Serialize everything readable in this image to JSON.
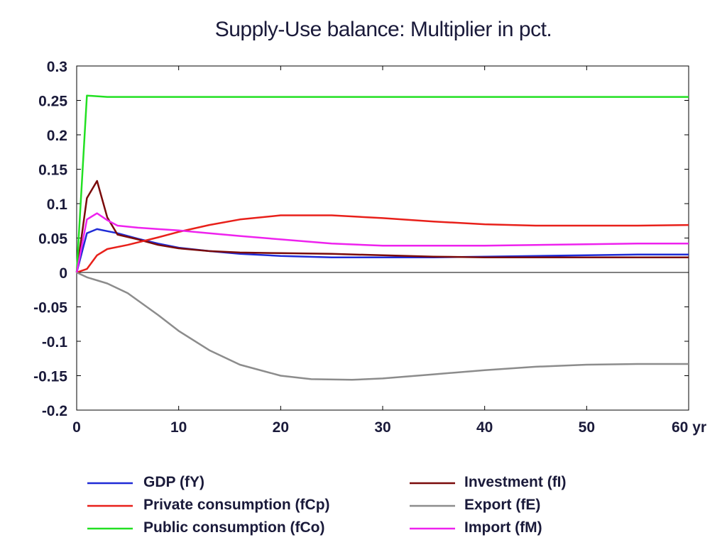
{
  "chart_data": {
    "type": "line",
    "title": "Supply-Use balance: Multiplier in pct.",
    "x_unit_label": "yr",
    "xlim": [
      0,
      60
    ],
    "ylim": [
      -0.2,
      0.3
    ],
    "x_ticks": [
      0,
      10,
      20,
      30,
      40,
      50,
      60
    ],
    "x_tick_labels": [
      "0",
      "10",
      "20",
      "30",
      "40",
      "50",
      "60 yr"
    ],
    "y_ticks": [
      -0.2,
      -0.15,
      -0.1,
      -0.05,
      0,
      0.05,
      0.1,
      0.15,
      0.2,
      0.25,
      0.3
    ],
    "y_tick_labels": [
      "-0.2",
      "-0.15",
      "-0.1",
      "-0.05",
      "0",
      "0.05",
      "0.1",
      "0.15",
      "0.2",
      "0.25",
      "0.3"
    ],
    "grid": false,
    "zero_line": true,
    "legend_position": "bottom",
    "series": [
      {
        "name": "GDP (fY)",
        "color": "#1f2bd6",
        "x": [
          0,
          1,
          2,
          3,
          4,
          6,
          8,
          10,
          13,
          16,
          20,
          25,
          30,
          35,
          40,
          45,
          50,
          55,
          60
        ],
        "y": [
          0,
          0.057,
          0.063,
          0.06,
          0.057,
          0.049,
          0.042,
          0.036,
          0.031,
          0.027,
          0.024,
          0.022,
          0.022,
          0.022,
          0.023,
          0.024,
          0.025,
          0.026,
          0.026
        ]
      },
      {
        "name": "Investment (fI)",
        "color": "#7a0a0a",
        "x": [
          0,
          1,
          2,
          3,
          4,
          6,
          8,
          10,
          13,
          16,
          20,
          25,
          30,
          35,
          40,
          45,
          50,
          55,
          60
        ],
        "y": [
          0,
          0.108,
          0.133,
          0.08,
          0.055,
          0.048,
          0.04,
          0.035,
          0.031,
          0.029,
          0.028,
          0.027,
          0.025,
          0.023,
          0.022,
          0.022,
          0.022,
          0.022,
          0.022
        ]
      },
      {
        "name": "Private consumption (fCp)",
        "color": "#e8201a",
        "x": [
          0,
          1,
          2,
          3,
          5,
          8,
          10,
          13,
          16,
          20,
          25,
          30,
          35,
          40,
          45,
          50,
          55,
          60
        ],
        "y": [
          0,
          0.005,
          0.025,
          0.034,
          0.04,
          0.051,
          0.059,
          0.069,
          0.077,
          0.083,
          0.083,
          0.079,
          0.074,
          0.07,
          0.068,
          0.068,
          0.068,
          0.069
        ]
      },
      {
        "name": "Export (fE)",
        "color": "#8c8c8c",
        "x": [
          0,
          1,
          3,
          5,
          8,
          10,
          13,
          16,
          20,
          23,
          27,
          30,
          35,
          40,
          45,
          50,
          55,
          60
        ],
        "y": [
          0,
          -0.007,
          -0.016,
          -0.03,
          -0.062,
          -0.085,
          -0.113,
          -0.134,
          -0.15,
          -0.155,
          -0.156,
          -0.154,
          -0.148,
          -0.142,
          -0.137,
          -0.134,
          -0.133,
          -0.133
        ]
      },
      {
        "name": "Public consumption (fCo)",
        "color": "#22e022",
        "x": [
          0,
          1,
          3,
          10,
          20,
          30,
          40,
          50,
          60
        ],
        "y": [
          0,
          0.257,
          0.255,
          0.255,
          0.255,
          0.255,
          0.255,
          0.255,
          0.255
        ]
      },
      {
        "name": "Import (fM)",
        "color": "#ee22ee",
        "x": [
          0,
          1,
          2,
          3,
          4,
          6,
          8,
          10,
          13,
          16,
          20,
          25,
          30,
          35,
          40,
          45,
          50,
          55,
          60
        ],
        "y": [
          0,
          0.077,
          0.086,
          0.076,
          0.068,
          0.065,
          0.063,
          0.061,
          0.057,
          0.053,
          0.048,
          0.042,
          0.039,
          0.039,
          0.039,
          0.04,
          0.041,
          0.042,
          0.042
        ]
      }
    ]
  }
}
